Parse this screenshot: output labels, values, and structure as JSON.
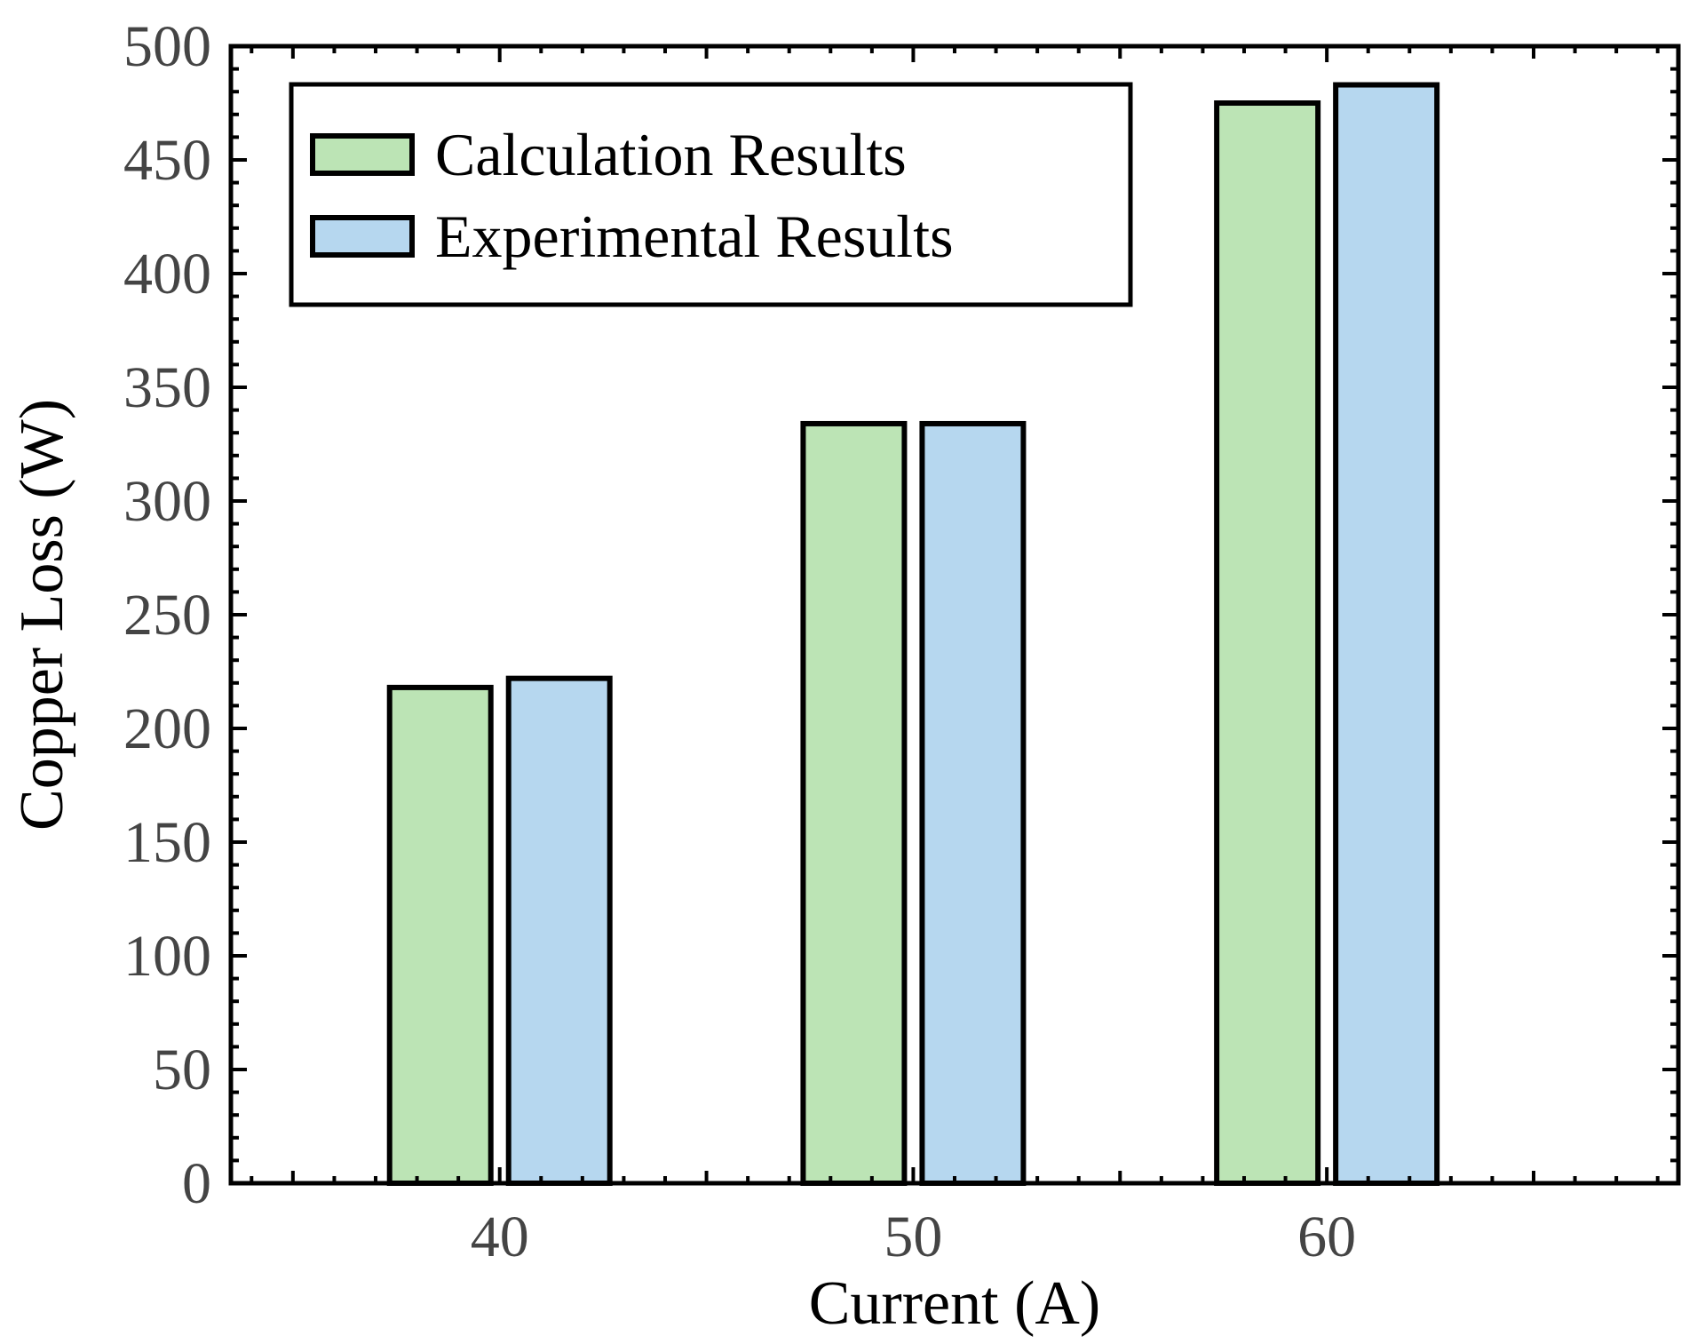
{
  "chart_data": {
    "type": "bar",
    "title": "",
    "xlabel": "Current (A)",
    "ylabel": "Copper Loss (W)",
    "categories": [
      "40",
      "50",
      "60"
    ],
    "series": [
      {
        "name": "Calculation Results",
        "color": "#bce4b5",
        "values": [
          218,
          334,
          475
        ]
      },
      {
        "name": "Experimental Results",
        "color": "#b6d7ef",
        "values": [
          222,
          334,
          483
        ]
      }
    ],
    "ylim": [
      0,
      500
    ],
    "yticks": [
      "0",
      "50",
      "100",
      "150",
      "200",
      "250",
      "300",
      "350",
      "400",
      "450",
      "500"
    ],
    "grid": false,
    "legend_position": "top-left",
    "outline_color": "#000000"
  }
}
